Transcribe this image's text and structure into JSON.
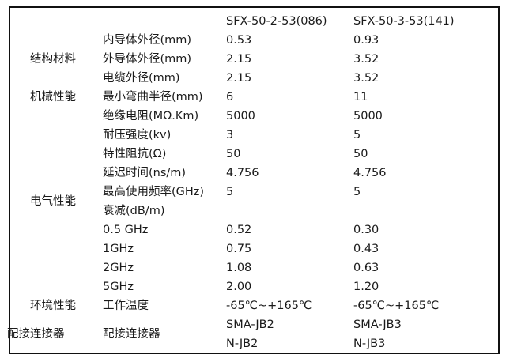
{
  "headers": {
    "col1": "SFX-50-2-53(086)",
    "col2": "SFX-50-3-53(141)"
  },
  "categories": {
    "structure": "结构材料",
    "mechanical": "机械性能",
    "electrical": "电气性能",
    "environment": "环境性能",
    "connector": "配接连接器"
  },
  "rows": [
    {
      "label": "内导体外径(mm)",
      "v1": "0.53",
      "v2": "0.93"
    },
    {
      "label": "外导体外径(mm)",
      "v1": "2.15",
      "v2": "3.52"
    },
    {
      "label": "电缆外径(mm)",
      "v1": "2.15",
      "v2": "3.52"
    },
    {
      "label": "最小弯曲半径(mm)",
      "v1": "6",
      "v2": "11"
    },
    {
      "label": "绝缘电阻(MΩ.Km)",
      "v1": "5000",
      "v2": "5000"
    },
    {
      "label": "耐压强度(kv)",
      "v1": "3",
      "v2": "5"
    },
    {
      "label": "特性阻抗(Ω)",
      "v1": "50",
      "v2": "50"
    },
    {
      "label": "延迟时间(ns/m)",
      "v1": "4.756",
      "v2": "4.756"
    },
    {
      "label": "最高使用频率(GHz)",
      "v1": "5",
      "v2": "5"
    },
    {
      "label": "衰减(dB/m)",
      "v1": "",
      "v2": ""
    },
    {
      "label": "0.5 GHz",
      "v1": "0.52",
      "v2": "0.30"
    },
    {
      "label": "1GHz",
      "v1": "0.75",
      "v2": "0.43"
    },
    {
      "label": "2GHz",
      "v1": "1.08",
      "v2": "0.63"
    },
    {
      "label": "5GHz",
      "v1": "2.00",
      "v2": "1.20"
    },
    {
      "label": "工作温度",
      "v1": "-65℃~+165℃",
      "v2": "-65℃~+165℃"
    },
    {
      "label": "配接连接器",
      "v1": "SMA-JB2",
      "v2": "SMA-JB3"
    },
    {
      "label": "",
      "v1": "N-JB2",
      "v2": "N-JB3"
    }
  ]
}
